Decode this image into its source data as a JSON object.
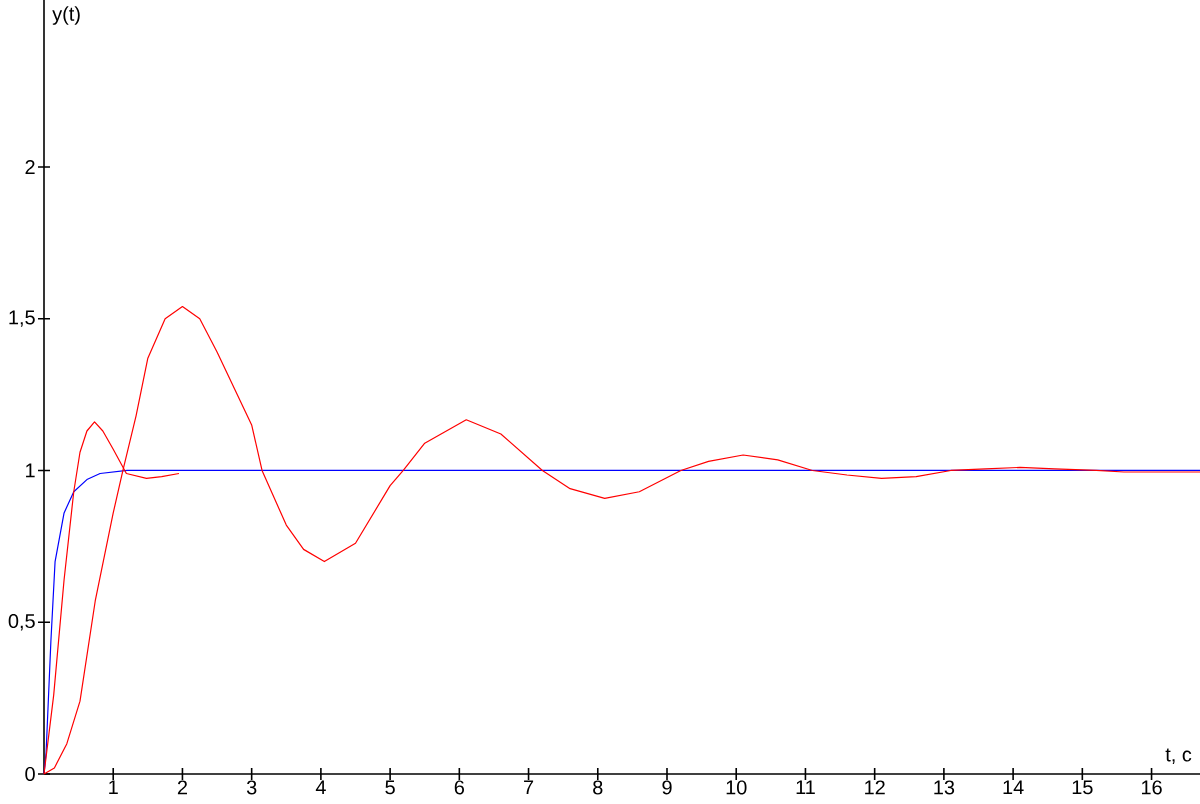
{
  "chart_data": {
    "type": "line",
    "xlabel": "t, c",
    "ylabel": "y(t)",
    "xlim": [
      0,
      16.7
    ],
    "ylim": [
      0,
      2.55
    ],
    "xticks": [
      1,
      2,
      3,
      4,
      5,
      6,
      7,
      8,
      9,
      10,
      11,
      12,
      13,
      14,
      15,
      16
    ],
    "yticks": [
      0,
      {
        "value": 0.5,
        "label": "0,5"
      },
      1,
      {
        "value": 1.5,
        "label": "1,5"
      },
      2
    ],
    "series": [
      {
        "color": "#ff0000",
        "x": [
          0,
          0.14,
          0.29,
          0.43,
          0.52,
          0.62,
          0.73,
          0.85,
          1.0,
          1.19,
          1.48,
          1.7,
          1.95
        ],
        "values": [
          0,
          0.26,
          0.64,
          0.93,
          1.06,
          1.13,
          1.16,
          1.13,
          1.07,
          0.99,
          0.974,
          0.98,
          0.99
        ]
      },
      {
        "color": "#ff0000",
        "x": [
          0,
          0.15,
          0.33,
          0.52,
          0.74,
          1.0,
          1.14,
          1.33,
          1.5,
          1.75,
          2.0,
          2.25,
          2.5,
          2.75,
          3.0,
          3.15,
          3.5,
          3.75,
          4.05,
          4.5,
          5.0,
          5.19,
          5.5,
          6.1,
          6.6,
          7.2,
          7.6,
          8.1,
          8.6,
          9.2,
          9.6,
          10.1,
          10.6,
          11.1,
          11.6,
          12.1,
          12.6,
          13.1,
          13.6,
          14.1,
          14.6,
          15.2,
          15.6,
          16.7
        ],
        "values": [
          0,
          0.02,
          0.1,
          0.24,
          0.57,
          0.86,
          1.0,
          1.18,
          1.37,
          1.5,
          1.54,
          1.5,
          1.39,
          1.27,
          1.15,
          1.0,
          0.82,
          0.74,
          0.7,
          0.76,
          0.95,
          1.0,
          1.09,
          1.167,
          1.12,
          1.0,
          0.94,
          0.908,
          0.93,
          1.0,
          1.03,
          1.051,
          1.035,
          1.0,
          0.985,
          0.974,
          0.98,
          1.0,
          1.005,
          1.01,
          1.005,
          1.0,
          0.995,
          0.995
        ]
      },
      {
        "color": "#0000ff",
        "x": [
          0,
          0.03,
          0.1,
          0.16,
          0.29,
          0.43,
          0.62,
          0.81,
          1.2,
          16.7
        ],
        "values": [
          0,
          0.07,
          0.44,
          0.7,
          0.86,
          0.93,
          0.97,
          0.99,
          1.0,
          1.0
        ]
      }
    ]
  }
}
